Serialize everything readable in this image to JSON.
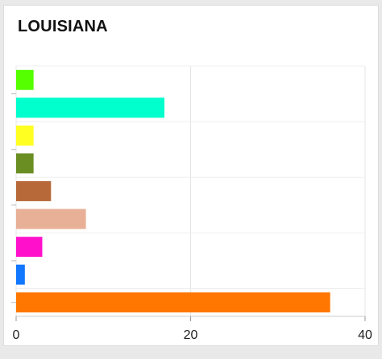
{
  "chart_data": {
    "type": "bar",
    "orientation": "horizontal",
    "title": "LOUISIANA",
    "xlabel": "",
    "ylabel": "",
    "xlim": [
      0,
      40
    ],
    "x_ticks": [
      0,
      20,
      40
    ],
    "grid": true,
    "legend": "none",
    "bars": [
      {
        "value": 2,
        "color": "#55ff00"
      },
      {
        "value": 17,
        "color": "#00ffcc"
      },
      {
        "value": 2,
        "color": "#ffff22"
      },
      {
        "value": 2,
        "color": "#6b8e23"
      },
      {
        "value": 4,
        "color": "#b8693a"
      },
      {
        "value": 8,
        "color": "#e8b096"
      },
      {
        "value": 3,
        "color": "#ff11cc"
      },
      {
        "value": 1,
        "color": "#1177ff"
      },
      {
        "value": 36,
        "color": "#ff7700"
      }
    ]
  }
}
